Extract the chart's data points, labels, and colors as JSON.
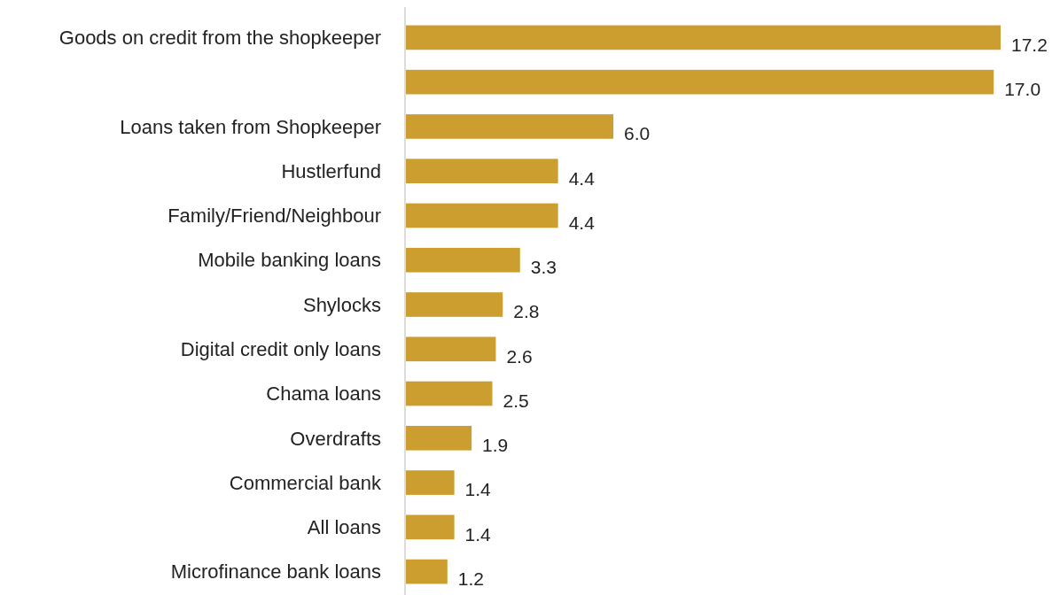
{
  "chart_data": {
    "type": "bar",
    "orientation": "horizontal",
    "categories": [
      "Goods on credit from the shopkeeper",
      null,
      "Loans taken from Shopkeeper",
      "Hustlerfund",
      "Family/Friend/Neighbour",
      "Mobile banking loans",
      "Shylocks",
      "Digital credit only loans",
      "Chama loans",
      "Overdrafts",
      "Commercial bank",
      "All loans",
      "Microfinance bank loans"
    ],
    "values": [
      17.2,
      17.0,
      6.0,
      4.4,
      4.4,
      3.3,
      2.8,
      2.6,
      2.5,
      1.9,
      1.4,
      1.4,
      1.2
    ],
    "value_labels": [
      "17.2",
      "17.0",
      "6.0",
      "4.4",
      "4.4",
      "3.3",
      "2.8",
      "2.6",
      "2.5",
      "1.9",
      "1.4",
      "1.4",
      "1.2"
    ],
    "color": "#cc9d2f",
    "xlim": [
      0,
      17.2
    ]
  }
}
